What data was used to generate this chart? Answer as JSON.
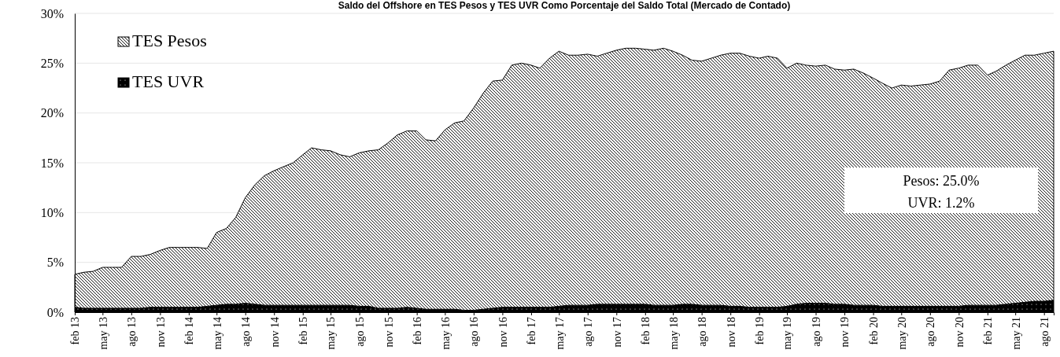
{
  "chart_data": {
    "type": "area",
    "stacked": true,
    "title": "Saldo del Offshore en TES Pesos y TES UVR Como Porcentaje del Saldo Total (Mercado de Contado)",
    "x": [
      "2013-02",
      "2013-03",
      "2013-04",
      "2013-05",
      "2013-06",
      "2013-07",
      "2013-08",
      "2013-09",
      "2013-10",
      "2013-11",
      "2013-12",
      "2014-01",
      "2014-02",
      "2014-03",
      "2014-04",
      "2014-05",
      "2014-06",
      "2014-07",
      "2014-08",
      "2014-09",
      "2014-10",
      "2014-11",
      "2014-12",
      "2015-01",
      "2015-02",
      "2015-03",
      "2015-04",
      "2015-05",
      "2015-06",
      "2015-07",
      "2015-08",
      "2015-09",
      "2015-10",
      "2015-11",
      "2015-12",
      "2016-01",
      "2016-02",
      "2016-03",
      "2016-04",
      "2016-05",
      "2016-06",
      "2016-07",
      "2016-08",
      "2016-09",
      "2016-10",
      "2016-11",
      "2016-12",
      "2017-01",
      "2017-02",
      "2017-03",
      "2017-04",
      "2017-05",
      "2017-06",
      "2017-07",
      "2017-08",
      "2017-09",
      "2017-10",
      "2017-11",
      "2017-12",
      "2018-01",
      "2018-02",
      "2018-03",
      "2018-04",
      "2018-05",
      "2018-06",
      "2018-07",
      "2018-08",
      "2018-09",
      "2018-10",
      "2018-11",
      "2018-12",
      "2019-01",
      "2019-02",
      "2019-03",
      "2019-04",
      "2019-05",
      "2019-06",
      "2019-07",
      "2019-08",
      "2019-09",
      "2019-10",
      "2019-11",
      "2019-12",
      "2020-01",
      "2020-02",
      "2020-03",
      "2020-04",
      "2020-05",
      "2020-06",
      "2020-07",
      "2020-08",
      "2020-09",
      "2020-10",
      "2020-11",
      "2020-12",
      "2021-01",
      "2021-02",
      "2021-03",
      "2021-04",
      "2021-05",
      "2021-06",
      "2021-07",
      "2021-08",
      "2021-09"
    ],
    "series": [
      {
        "name": "TES UVR",
        "color": "#000000",
        "values": [
          0.5,
          0.4,
          0.4,
          0.4,
          0.4,
          0.4,
          0.4,
          0.4,
          0.5,
          0.5,
          0.5,
          0.5,
          0.5,
          0.5,
          0.6,
          0.7,
          0.8,
          0.8,
          0.9,
          0.8,
          0.7,
          0.7,
          0.7,
          0.7,
          0.7,
          0.7,
          0.7,
          0.7,
          0.7,
          0.7,
          0.6,
          0.6,
          0.4,
          0.4,
          0.4,
          0.5,
          0.4,
          0.3,
          0.3,
          0.3,
          0.3,
          0.2,
          0.2,
          0.3,
          0.4,
          0.5,
          0.5,
          0.5,
          0.5,
          0.5,
          0.5,
          0.6,
          0.7,
          0.7,
          0.7,
          0.8,
          0.8,
          0.8,
          0.8,
          0.8,
          0.8,
          0.7,
          0.7,
          0.7,
          0.8,
          0.8,
          0.7,
          0.7,
          0.7,
          0.6,
          0.6,
          0.5,
          0.5,
          0.5,
          0.5,
          0.6,
          0.8,
          0.9,
          0.9,
          0.9,
          0.8,
          0.8,
          0.7,
          0.7,
          0.7,
          0.6,
          0.6,
          0.6,
          0.6,
          0.6,
          0.6,
          0.6,
          0.6,
          0.6,
          0.7,
          0.7,
          0.7,
          0.7,
          0.8,
          0.9,
          1.0,
          1.1,
          1.1,
          1.2
        ]
      },
      {
        "name": "TES Pesos",
        "color": "#000000",
        "values": [
          3.3,
          3.6,
          3.7,
          4.1,
          4.1,
          4.1,
          5.2,
          5.2,
          5.3,
          5.7,
          6.0,
          6.0,
          6.0,
          6.0,
          5.8,
          7.3,
          7.6,
          8.7,
          10.6,
          12.0,
          13.0,
          13.5,
          13.9,
          14.3,
          15.1,
          15.8,
          15.6,
          15.5,
          15.1,
          14.9,
          15.4,
          15.6,
          15.9,
          16.6,
          17.4,
          17.7,
          17.8,
          17.0,
          16.9,
          18.0,
          18.7,
          19.0,
          20.3,
          21.7,
          22.8,
          22.8,
          24.3,
          24.5,
          24.3,
          24.0,
          25.0,
          25.6,
          25.1,
          25.1,
          25.2,
          24.9,
          25.2,
          25.5,
          25.7,
          25.7,
          25.6,
          25.6,
          25.8,
          25.5,
          25.0,
          24.5,
          24.5,
          24.8,
          25.1,
          25.4,
          25.4,
          25.2,
          25.0,
          25.2,
          25.0,
          23.9,
          24.2,
          23.9,
          23.8,
          23.9,
          23.6,
          23.5,
          23.7,
          23.3,
          22.8,
          22.4,
          21.9,
          22.2,
          22.1,
          22.2,
          22.3,
          22.6,
          23.7,
          23.9,
          24.1,
          24.1,
          23.1,
          23.5,
          24.0,
          24.4,
          24.8,
          24.7,
          24.9,
          25.0
        ]
      }
    ],
    "annotations": [
      "Pesos: 25.0%",
      "UVR: 1.2%"
    ],
    "ylim": [
      0,
      30
    ],
    "yticks": [
      {
        "value": 0,
        "label": "0%"
      },
      {
        "value": 5,
        "label": "5%"
      },
      {
        "value": 10,
        "label": "10%"
      },
      {
        "value": 15,
        "label": "15%"
      },
      {
        "value": 20,
        "label": "20%"
      },
      {
        "value": 25,
        "label": "25%"
      },
      {
        "value": 30,
        "label": "30%"
      }
    ],
    "xlim": [
      "2013-02",
      "2021-09"
    ],
    "xticks": [
      {
        "value": "2013-02",
        "label": "feb 13"
      },
      {
        "value": "2013-05",
        "label": "may 13"
      },
      {
        "value": "2013-08",
        "label": "ago 13"
      },
      {
        "value": "2013-11",
        "label": "nov 13"
      },
      {
        "value": "2014-02",
        "label": "feb 14"
      },
      {
        "value": "2014-05",
        "label": "may 14"
      },
      {
        "value": "2014-08",
        "label": "ago 14"
      },
      {
        "value": "2014-11",
        "label": "nov 14"
      },
      {
        "value": "2015-02",
        "label": "feb 15"
      },
      {
        "value": "2015-05",
        "label": "may 15"
      },
      {
        "value": "2015-08",
        "label": "ago 15"
      },
      {
        "value": "2015-11",
        "label": "nov 15"
      },
      {
        "value": "2016-02",
        "label": "feb 16"
      },
      {
        "value": "2016-05",
        "label": "may 16"
      },
      {
        "value": "2016-08",
        "label": "ago 16"
      },
      {
        "value": "2016-11",
        "label": "nov 16"
      },
      {
        "value": "2017-02",
        "label": "feb 17"
      },
      {
        "value": "2017-05",
        "label": "may 17"
      },
      {
        "value": "2017-08",
        "label": "ago 17"
      },
      {
        "value": "2017-11",
        "label": "nov 17"
      },
      {
        "value": "2018-02",
        "label": "feb 18"
      },
      {
        "value": "2018-05",
        "label": "may 18"
      },
      {
        "value": "2018-08",
        "label": "ago 18"
      },
      {
        "value": "2018-11",
        "label": "nov 18"
      },
      {
        "value": "2019-02",
        "label": "feb 19"
      },
      {
        "value": "2019-05",
        "label": "may 19"
      },
      {
        "value": "2019-08",
        "label": "ago 19"
      },
      {
        "value": "2019-11",
        "label": "nov 19"
      },
      {
        "value": "2020-02",
        "label": "feb 20"
      },
      {
        "value": "2020-05",
        "label": "may 20"
      },
      {
        "value": "2020-08",
        "label": "ago 20"
      },
      {
        "value": "2020-11",
        "label": "nov 20"
      },
      {
        "value": "2021-02",
        "label": "feb 21"
      },
      {
        "value": "2021-05",
        "label": "may 21"
      },
      {
        "value": "2021-08",
        "label": "ago 21"
      }
    ],
    "grid": "y",
    "legend": "top left"
  }
}
